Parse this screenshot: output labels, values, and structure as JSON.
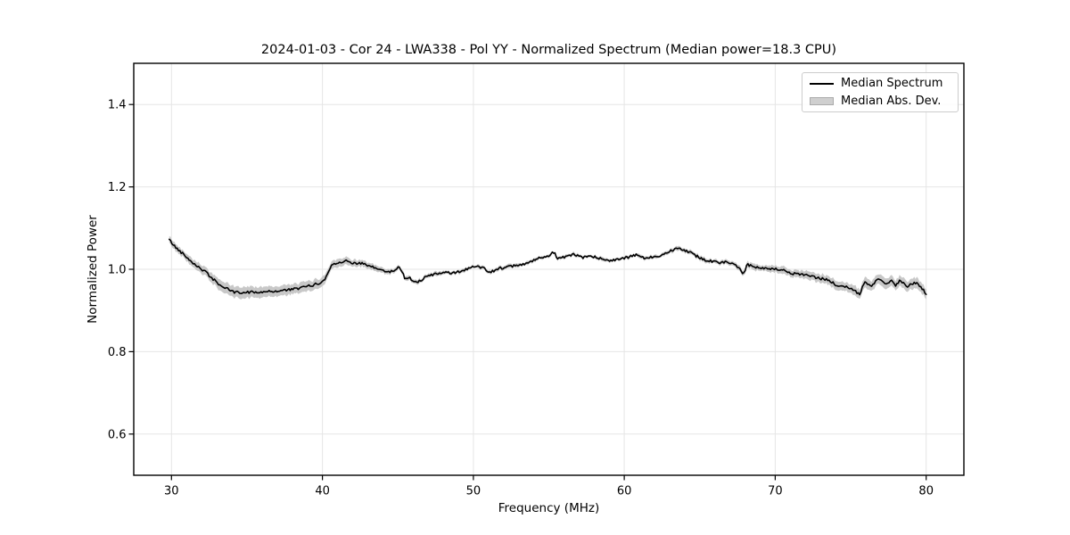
{
  "figure": {
    "background": "#ffffff",
    "spine_color": "#000000"
  },
  "chart_data": {
    "type": "line",
    "title": "2024-01-03 - Cor 24 - LWA338 - Pol YY - Normalized Spectrum (Median power=18.3 CPU)",
    "xlabel": "Frequency (MHz)",
    "ylabel": "Normalized Power",
    "xlim": [
      27.5,
      82.5
    ],
    "ylim": [
      0.5,
      1.5
    ],
    "xticks": [
      30,
      40,
      50,
      60,
      70,
      80
    ],
    "xtick_labels": [
      "30",
      "40",
      "50",
      "60",
      "70",
      "80"
    ],
    "yticks": [
      0.6,
      0.8,
      1.0,
      1.2,
      1.4
    ],
    "ytick_labels": [
      "0.6",
      "0.8",
      "1.0",
      "1.2",
      "1.4"
    ],
    "grid": true,
    "grid_color": "#e5e5e5",
    "legend": {
      "position": "upper-right",
      "entries": [
        {
          "label": "Median Spectrum",
          "type": "line",
          "color": "#000000"
        },
        {
          "label": "Median Abs. Dev.",
          "type": "patch",
          "color": "#cfcfcf"
        }
      ]
    },
    "series": [
      {
        "name": "Median Spectrum",
        "type": "line",
        "color": "#000000",
        "x": [
          29.85,
          30.0,
          30.3,
          30.7,
          31.2,
          31.7,
          32.2,
          32.7,
          33.2,
          33.7,
          34.2,
          34.7,
          35.2,
          35.7,
          36.2,
          36.7,
          37.2,
          37.7,
          38.2,
          38.7,
          39.2,
          39.7,
          40.1,
          40.35,
          40.6,
          41.0,
          41.5,
          42.0,
          42.6,
          43.2,
          43.8,
          44.3,
          44.8,
          45.1,
          45.45,
          45.8,
          46.2,
          47.1,
          47.9,
          48.6,
          49.3,
          50.0,
          50.7,
          51.1,
          51.7,
          52.3,
          53.0,
          53.6,
          54.3,
          55.0,
          55.3,
          55.6,
          56.0,
          56.6,
          57.2,
          58.0,
          58.8,
          59.5,
          60.2,
          60.8,
          61.3,
          62.0,
          62.7,
          63.3,
          63.6,
          64.0,
          64.8,
          65.5,
          66.2,
          66.8,
          67.4,
          67.9,
          68.15,
          68.8,
          69.5,
          70.0,
          70.6,
          71.2,
          72.0,
          72.8,
          73.5,
          74.1,
          74.7,
          75.2,
          75.6,
          75.9,
          76.3,
          76.9,
          77.3,
          77.7,
          78.0,
          78.3,
          78.7,
          79.0,
          79.4,
          79.7,
          80.0
        ],
        "y": [
          1.072,
          1.065,
          1.052,
          1.04,
          1.023,
          1.008,
          0.995,
          0.978,
          0.962,
          0.952,
          0.944,
          0.943,
          0.945,
          0.944,
          0.946,
          0.946,
          0.948,
          0.95,
          0.952,
          0.956,
          0.96,
          0.965,
          0.972,
          0.99,
          1.01,
          1.017,
          1.02,
          1.016,
          1.014,
          1.006,
          1.0,
          0.993,
          0.996,
          1.008,
          0.98,
          0.978,
          0.968,
          0.985,
          0.992,
          0.99,
          0.997,
          1.006,
          1.005,
          0.992,
          1.003,
          1.005,
          1.01,
          1.015,
          1.026,
          1.03,
          1.043,
          1.027,
          1.03,
          1.036,
          1.028,
          1.03,
          1.022,
          1.024,
          1.028,
          1.035,
          1.027,
          1.03,
          1.038,
          1.049,
          1.053,
          1.047,
          1.032,
          1.021,
          1.016,
          1.019,
          1.011,
          0.989,
          1.011,
          1.005,
          1.001,
          1.0,
          0.997,
          0.989,
          0.986,
          0.979,
          0.974,
          0.96,
          0.957,
          0.95,
          0.938,
          0.97,
          0.958,
          0.977,
          0.962,
          0.976,
          0.96,
          0.974,
          0.957,
          0.963,
          0.968,
          0.955,
          0.941
        ]
      },
      {
        "name": "Median Abs. Dev.",
        "type": "band-half-width",
        "color": "#c8c8c8",
        "x": [
          29.85,
          31,
          33,
          34.5,
          36,
          38,
          39.5,
          40.5,
          41.5,
          43,
          45,
          47,
          50,
          55,
          58,
          62,
          65,
          67,
          68.5,
          70,
          71.5,
          73,
          74.5,
          76,
          78,
          80
        ],
        "half_width": [
          0.008,
          0.009,
          0.012,
          0.014,
          0.013,
          0.012,
          0.012,
          0.01,
          0.009,
          0.007,
          0.005,
          0.005,
          0.004,
          0.004,
          0.004,
          0.004,
          0.005,
          0.005,
          0.007,
          0.008,
          0.009,
          0.01,
          0.011,
          0.012,
          0.012,
          0.013
        ]
      }
    ],
    "render": {
      "samples": 570,
      "noise_amplitude": 0.0032,
      "noise_seed": 42,
      "x_start": 29.85,
      "x_end": 80.0
    }
  }
}
